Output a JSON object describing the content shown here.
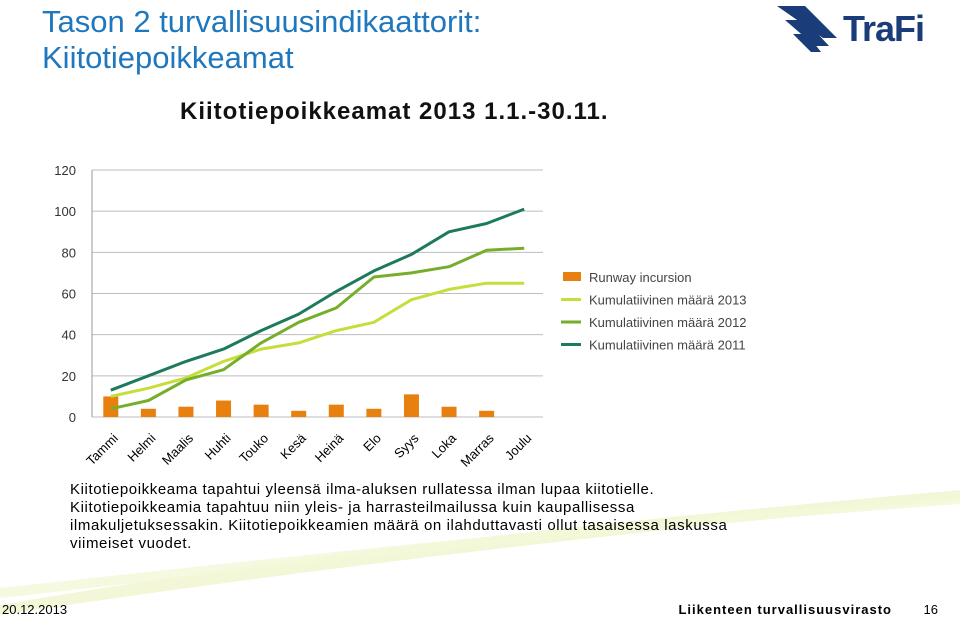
{
  "header": {
    "title_line1": "Tason 2 turvallisuusindikaattorit:",
    "title_line2": "Kiitotiepoikkeamat",
    "logo_text": "TraFi"
  },
  "description": {
    "paragraph1": "Kiitotiepoikkeama tapahtui yleensä ilma-aluksen rullatessa ilman lupaa kiitotielle.",
    "paragraph2": "Kiitotiepoikkeamia tapahtuu niin yleis- ja harrasteilmailussa kuin kaupallisessa ilmakuljetuksessakin. Kiitotiepoikkeamien määrä on ilahduttavasti ollut tasaisessa laskussa viimeiset vuodet."
  },
  "footer": {
    "date": "20.12.2013",
    "agency": "Liikenteen turvallisuusvirasto",
    "page": "16"
  },
  "colors": {
    "title": "#1f77bd",
    "bar": "#e8800f",
    "line_2013": "#c6de3c",
    "line_2012": "#76ae2c",
    "line_2011": "#1e7a5c",
    "logo": "#1a3c78"
  },
  "chart_data": {
    "type": "bar",
    "title": "Kiitotiepoikkeamat 2013 1.1.-30.11.",
    "categories": [
      "Tammi",
      "Helmi",
      "Maalis",
      "Huhti",
      "Touko",
      "Kesä",
      "Heinä",
      "Elo",
      "Syys",
      "Loka",
      "Marras",
      "Joulu"
    ],
    "ylim": [
      0,
      120
    ],
    "yticks": [
      0,
      20,
      40,
      60,
      80,
      100,
      120
    ],
    "grid": true,
    "legend_position": "right",
    "series": [
      {
        "name": "Runway incursion",
        "type": "bar",
        "color": "#e8800f",
        "values": [
          10,
          4,
          5,
          8,
          6,
          3,
          6,
          4,
          11,
          5,
          3,
          null
        ]
      },
      {
        "name": "Kumulatiivinen määrä 2013",
        "type": "line",
        "color": "#c6de3c",
        "values": [
          10,
          14,
          19,
          27,
          33,
          36,
          42,
          46,
          57,
          62,
          65,
          65
        ]
      },
      {
        "name": "Kumulatiivinen määrä 2012",
        "type": "line",
        "color": "#76ae2c",
        "values": [
          4,
          8,
          18,
          23,
          36,
          46,
          53,
          68,
          70,
          73,
          81,
          82
        ]
      },
      {
        "name": "Kumulatiivinen määrä 2011",
        "type": "line",
        "color": "#1e7a5c",
        "values": [
          13,
          20,
          27,
          33,
          42,
          50,
          61,
          71,
          79,
          90,
          94,
          101
        ]
      }
    ]
  }
}
